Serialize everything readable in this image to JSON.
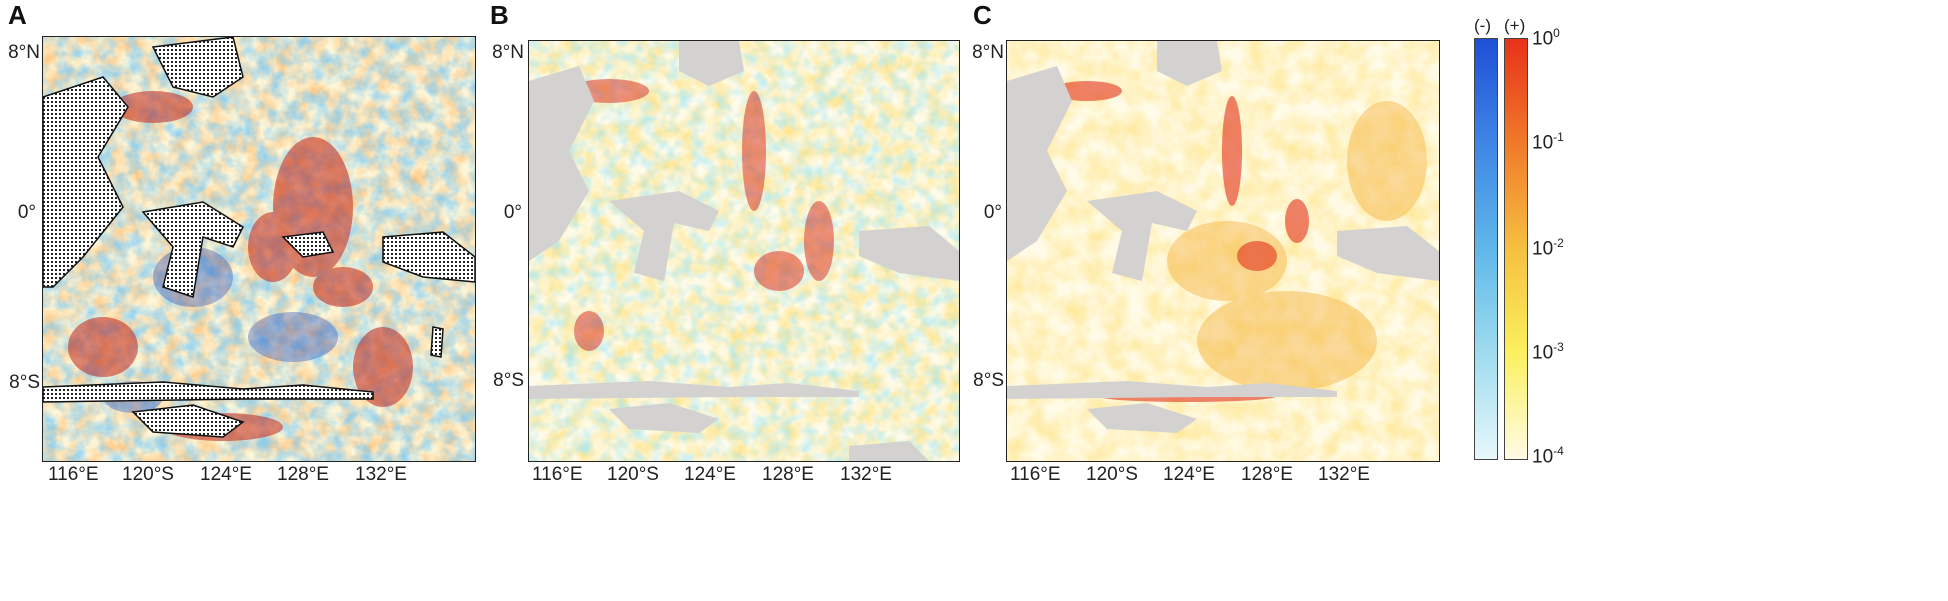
{
  "panels": [
    {
      "letter": "A",
      "lat_labels": [
        "8°N",
        "0°",
        "8°S"
      ],
      "lon_labels": [
        "116°E",
        "120°S",
        "124°E",
        "128°E",
        "132°E"
      ]
    },
    {
      "letter": "B",
      "lat_labels": [
        "8°N",
        "0°",
        "8°S"
      ],
      "lon_labels": [
        "116°E",
        "120°S",
        "124°E",
        "128°E",
        "132°E"
      ]
    },
    {
      "letter": "C",
      "lat_labels": [
        "8°N",
        "0°",
        "8°S"
      ],
      "lon_labels": [
        "116°E",
        "120°S",
        "124°E",
        "128°E",
        "132°E"
      ]
    }
  ],
  "colorbar": {
    "negative_label": "(-)",
    "positive_label": "(+)",
    "tick_base": "10",
    "tick_exponents": [
      "0",
      "-1",
      "-2",
      "-3",
      "-4"
    ],
    "negative_colors": [
      "#1f4fd6",
      "#3f86e6",
      "#5fb8ea",
      "#9fdcef",
      "#e8f8fb"
    ],
    "positive_colors": [
      "#e8321a",
      "#f07a2a",
      "#f6c040",
      "#fbf060",
      "#fffbe6"
    ]
  }
}
